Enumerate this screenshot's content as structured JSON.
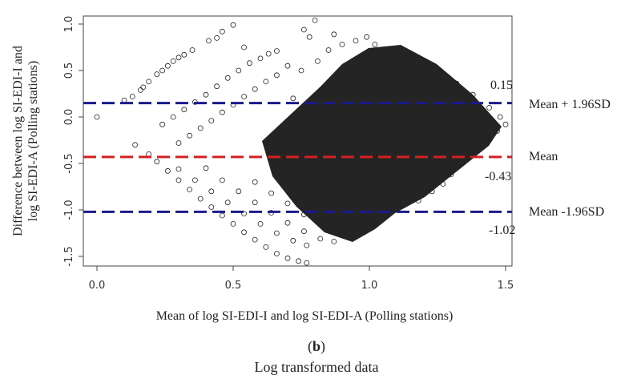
{
  "chart_data": {
    "type": "scatter",
    "title": "",
    "xlabel": "Mean of log SI-EDI-I and log SI-EDI-A (Polling stations)",
    "ylabel_lines": [
      "Difference between log SI-EDI-I and",
      "log SI-EDI-A (Polling stations)"
    ],
    "xlim": [
      -0.05,
      1.53
    ],
    "ylim": [
      -1.65,
      1.1
    ],
    "x_ticks": [
      0.0,
      0.5,
      1.0,
      1.5
    ],
    "y_ticks": [
      -1.5,
      -1.0,
      -0.5,
      0.0,
      0.5,
      1.0
    ],
    "x_tick_labels": [
      "0.0",
      "0.5",
      "1.0",
      "1.5"
    ],
    "y_tick_labels": [
      "-1.5",
      "-1.0",
      "-0.5",
      "0.0",
      "0.5",
      "1.0"
    ],
    "grid": false,
    "marker": "open-circle",
    "reference_lines": [
      {
        "name": "Mean + 1.96SD",
        "value": 0.15,
        "value_label": "0.15",
        "color": "#1a1a8c",
        "style": "dashed"
      },
      {
        "name": "Mean",
        "value": -0.43,
        "value_label": "-0.43",
        "color": "#d42020",
        "style": "dashed"
      },
      {
        "name": "Mean -1.96SD",
        "value": -1.02,
        "value_label": "-1.02",
        "color": "#1a1a8c",
        "style": "dashed"
      }
    ],
    "points": [
      [
        0.0,
        0.0
      ],
      [
        0.14,
        -0.3
      ],
      [
        0.1,
        0.18
      ],
      [
        0.13,
        0.22
      ],
      [
        0.16,
        0.29
      ],
      [
        0.17,
        0.32
      ],
      [
        0.19,
        0.38
      ],
      [
        0.22,
        0.46
      ],
      [
        0.24,
        0.5
      ],
      [
        0.26,
        0.55
      ],
      [
        0.28,
        0.6
      ],
      [
        0.3,
        0.64
      ],
      [
        0.32,
        0.67
      ],
      [
        0.35,
        0.72
      ],
      [
        0.41,
        0.82
      ],
      [
        0.44,
        0.85
      ],
      [
        0.46,
        0.92
      ],
      [
        0.5,
        0.99
      ],
      [
        0.54,
        0.75
      ],
      [
        0.66,
        0.71
      ],
      [
        0.76,
        0.94
      ],
      [
        0.78,
        0.86
      ],
      [
        0.8,
        1.04
      ],
      [
        0.87,
        0.89
      ],
      [
        0.19,
        -0.4
      ],
      [
        0.22,
        -0.48
      ],
      [
        0.26,
        -0.58
      ],
      [
        0.3,
        -0.68
      ],
      [
        0.34,
        -0.78
      ],
      [
        0.38,
        -0.88
      ],
      [
        0.42,
        -0.97
      ],
      [
        0.46,
        -1.06
      ],
      [
        0.5,
        -1.15
      ],
      [
        0.54,
        -1.24
      ],
      [
        0.58,
        -1.32
      ],
      [
        0.62,
        -1.4
      ],
      [
        0.66,
        -1.47
      ],
      [
        0.7,
        -1.52
      ],
      [
        0.74,
        -1.55
      ],
      [
        0.77,
        -1.57
      ],
      [
        0.3,
        -0.56
      ],
      [
        0.36,
        -0.68
      ],
      [
        0.42,
        -0.8
      ],
      [
        0.48,
        -0.92
      ],
      [
        0.54,
        -1.04
      ],
      [
        0.6,
        -1.15
      ],
      [
        0.66,
        -1.25
      ],
      [
        0.72,
        -1.33
      ],
      [
        0.77,
        -1.38
      ],
      [
        0.4,
        -0.55
      ],
      [
        0.46,
        -0.68
      ],
      [
        0.52,
        -0.8
      ],
      [
        0.58,
        -0.92
      ],
      [
        0.64,
        -1.03
      ],
      [
        0.7,
        -1.14
      ],
      [
        0.76,
        -1.23
      ],
      [
        0.82,
        -1.31
      ],
      [
        0.87,
        -1.34
      ],
      [
        0.58,
        -0.7
      ],
      [
        0.64,
        -0.82
      ],
      [
        0.7,
        -0.93
      ],
      [
        0.76,
        -1.05
      ],
      [
        0.82,
        -1.15
      ],
      [
        0.88,
        -1.25
      ],
      [
        0.93,
        -1.3
      ],
      [
        0.24,
        -0.08
      ],
      [
        0.28,
        0.0
      ],
      [
        0.32,
        0.08
      ],
      [
        0.36,
        0.16
      ],
      [
        0.4,
        0.24
      ],
      [
        0.44,
        0.33
      ],
      [
        0.48,
        0.42
      ],
      [
        0.52,
        0.5
      ],
      [
        0.56,
        0.58
      ],
      [
        0.6,
        0.63
      ],
      [
        0.63,
        0.68
      ],
      [
        0.3,
        -0.28
      ],
      [
        0.34,
        -0.2
      ],
      [
        0.38,
        -0.12
      ],
      [
        0.42,
        -0.04
      ],
      [
        0.46,
        0.05
      ],
      [
        0.5,
        0.13
      ],
      [
        0.54,
        0.22
      ],
      [
        0.58,
        0.3
      ],
      [
        0.62,
        0.38
      ],
      [
        0.66,
        0.45
      ],
      [
        0.72,
        0.2
      ],
      [
        0.75,
        0.5
      ],
      [
        0.7,
        0.55
      ],
      [
        0.81,
        0.6
      ],
      [
        0.85,
        0.72
      ],
      [
        0.9,
        0.78
      ],
      [
        0.95,
        0.82
      ],
      [
        0.99,
        0.86
      ],
      [
        1.02,
        0.78
      ],
      [
        1.08,
        0.72
      ],
      [
        1.14,
        0.66
      ],
      [
        1.2,
        0.58
      ],
      [
        1.26,
        0.48
      ],
      [
        1.32,
        0.36
      ],
      [
        1.38,
        0.24
      ],
      [
        1.44,
        0.1
      ],
      [
        1.48,
        0.0
      ],
      [
        1.5,
        -0.08
      ],
      [
        1.47,
        -0.15
      ],
      [
        1.43,
        -0.22
      ],
      [
        1.4,
        -0.3
      ],
      [
        1.37,
        -0.4
      ],
      [
        1.34,
        -0.5
      ],
      [
        1.3,
        -0.62
      ],
      [
        1.27,
        -0.72
      ],
      [
        1.23,
        -0.8
      ],
      [
        1.18,
        -0.9
      ],
      [
        1.12,
        -0.95
      ],
      [
        1.06,
        -1.0
      ],
      [
        0.98,
        -1.08
      ],
      [
        0.94,
        -1.18
      ],
      [
        0.9,
        -1.22
      ]
    ]
  },
  "annotations": {
    "upper_line_name": "Mean + 1.96SD",
    "mean_line_name": "Mean",
    "lower_line_name": "Mean -1.96SD",
    "upper_value": "0.15",
    "mean_value": "-0.43",
    "lower_value": "-1.02"
  },
  "caption": {
    "panel_letter": "b",
    "text": "Log transformed data"
  }
}
